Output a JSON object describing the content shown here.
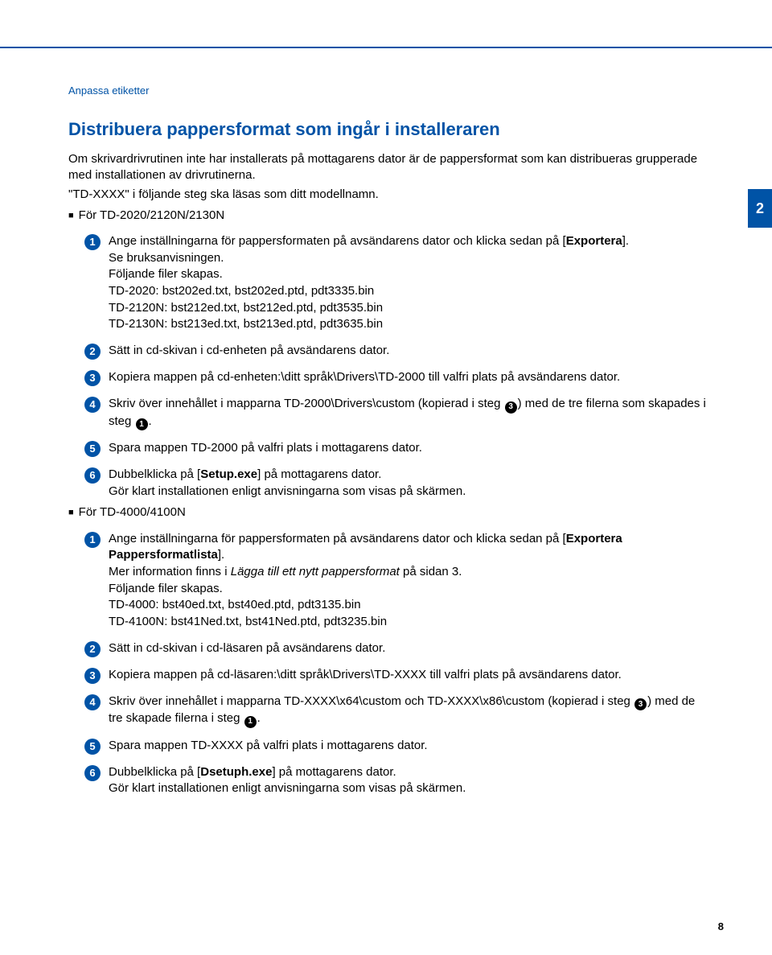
{
  "colors": {
    "accent": "#0053a6",
    "text": "#000000",
    "inline_circle_bg": "#000000",
    "white": "#ffffff"
  },
  "page": {
    "tab": "2",
    "number": "8",
    "breadcrumb": "Anpassa etiketter"
  },
  "heading": "Distribuera pappersformat som ingår i installeraren",
  "intro": {
    "p1": "Om skrivardrivrutinen inte har installerats på mottagarens dator är de pappersformat som kan distribueras grupperade med installationen av drivrutinerna.",
    "p2": "\"TD-XXXX\" i följande steg ska läsas som ditt modellnamn."
  },
  "sectionA": {
    "title": "För TD-2020/2120N/2130N",
    "steps": {
      "s1": {
        "a": "Ange inställningarna för pappersformaten på avsändarens dator och klicka sedan på [",
        "b": "Exportera",
        "c": "].",
        "d": "Se bruksanvisningen.",
        "e": "Följande filer skapas.",
        "f": "TD-2020: bst202ed.txt, bst202ed.ptd, pdt3335.bin",
        "g": "TD-2120N: bst212ed.txt, bst212ed.ptd, pdt3535.bin",
        "h": "TD-2130N: bst213ed.txt, bst213ed.ptd, pdt3635.bin"
      },
      "s2": "Sätt in cd-skivan i cd-enheten på avsändarens dator.",
      "s3": "Kopiera mappen på cd-enheten:\\ditt språk\\Drivers\\TD-2000 till valfri plats på avsändarens dator.",
      "s4": {
        "a": "Skriv över innehållet i mapparna TD-2000\\Drivers\\custom (kopierad i steg ",
        "b": ") med de tre filerna som skapades i steg ",
        "c": ".",
        "ref1": "3",
        "ref2": "1"
      },
      "s5": "Spara mappen TD-2000 på valfri plats i mottagarens dator.",
      "s6": {
        "a": "Dubbelklicka på [",
        "b": "Setup.exe",
        "c": "] på mottagarens dator.",
        "d": "Gör klart installationen enligt anvisningarna som visas på skärmen."
      }
    }
  },
  "sectionB": {
    "title": "För TD-4000/4100N",
    "steps": {
      "s1": {
        "a": "Ange inställningarna för pappersformaten på avsändarens dator och klicka sedan på [",
        "b": "Exportera Pappersformatlista",
        "c": "].",
        "d": "Mer information finns i ",
        "e": "Lägga till ett nytt pappersformat",
        "f": " på sidan 3.",
        "g": "Följande filer skapas.",
        "h": "TD-4000: bst40ed.txt, bst40ed.ptd, pdt3135.bin",
        "i": "TD-4100N: bst41Ned.txt, bst41Ned.ptd, pdt3235.bin"
      },
      "s2": "Sätt in cd-skivan i cd-läsaren på avsändarens dator.",
      "s3": "Kopiera mappen på cd-läsaren:\\ditt språk\\Drivers\\TD-XXXX till valfri plats på avsändarens dator.",
      "s4": {
        "a": "Skriv över innehållet i mapparna TD-XXXX\\x64\\custom och TD-XXXX\\x86\\custom (kopierad i steg ",
        "b": ") med de tre skapade filerna i steg ",
        "c": ".",
        "ref1": "3",
        "ref2": "1"
      },
      "s5": "Spara mappen TD-XXXX på valfri plats i mottagarens dator.",
      "s6": {
        "a": "Dubbelklicka på [",
        "b": "Dsetuph.exe",
        "c": "] på mottagarens dator.",
        "d": "Gör klart installationen enligt anvisningarna som visas på skärmen."
      }
    }
  }
}
